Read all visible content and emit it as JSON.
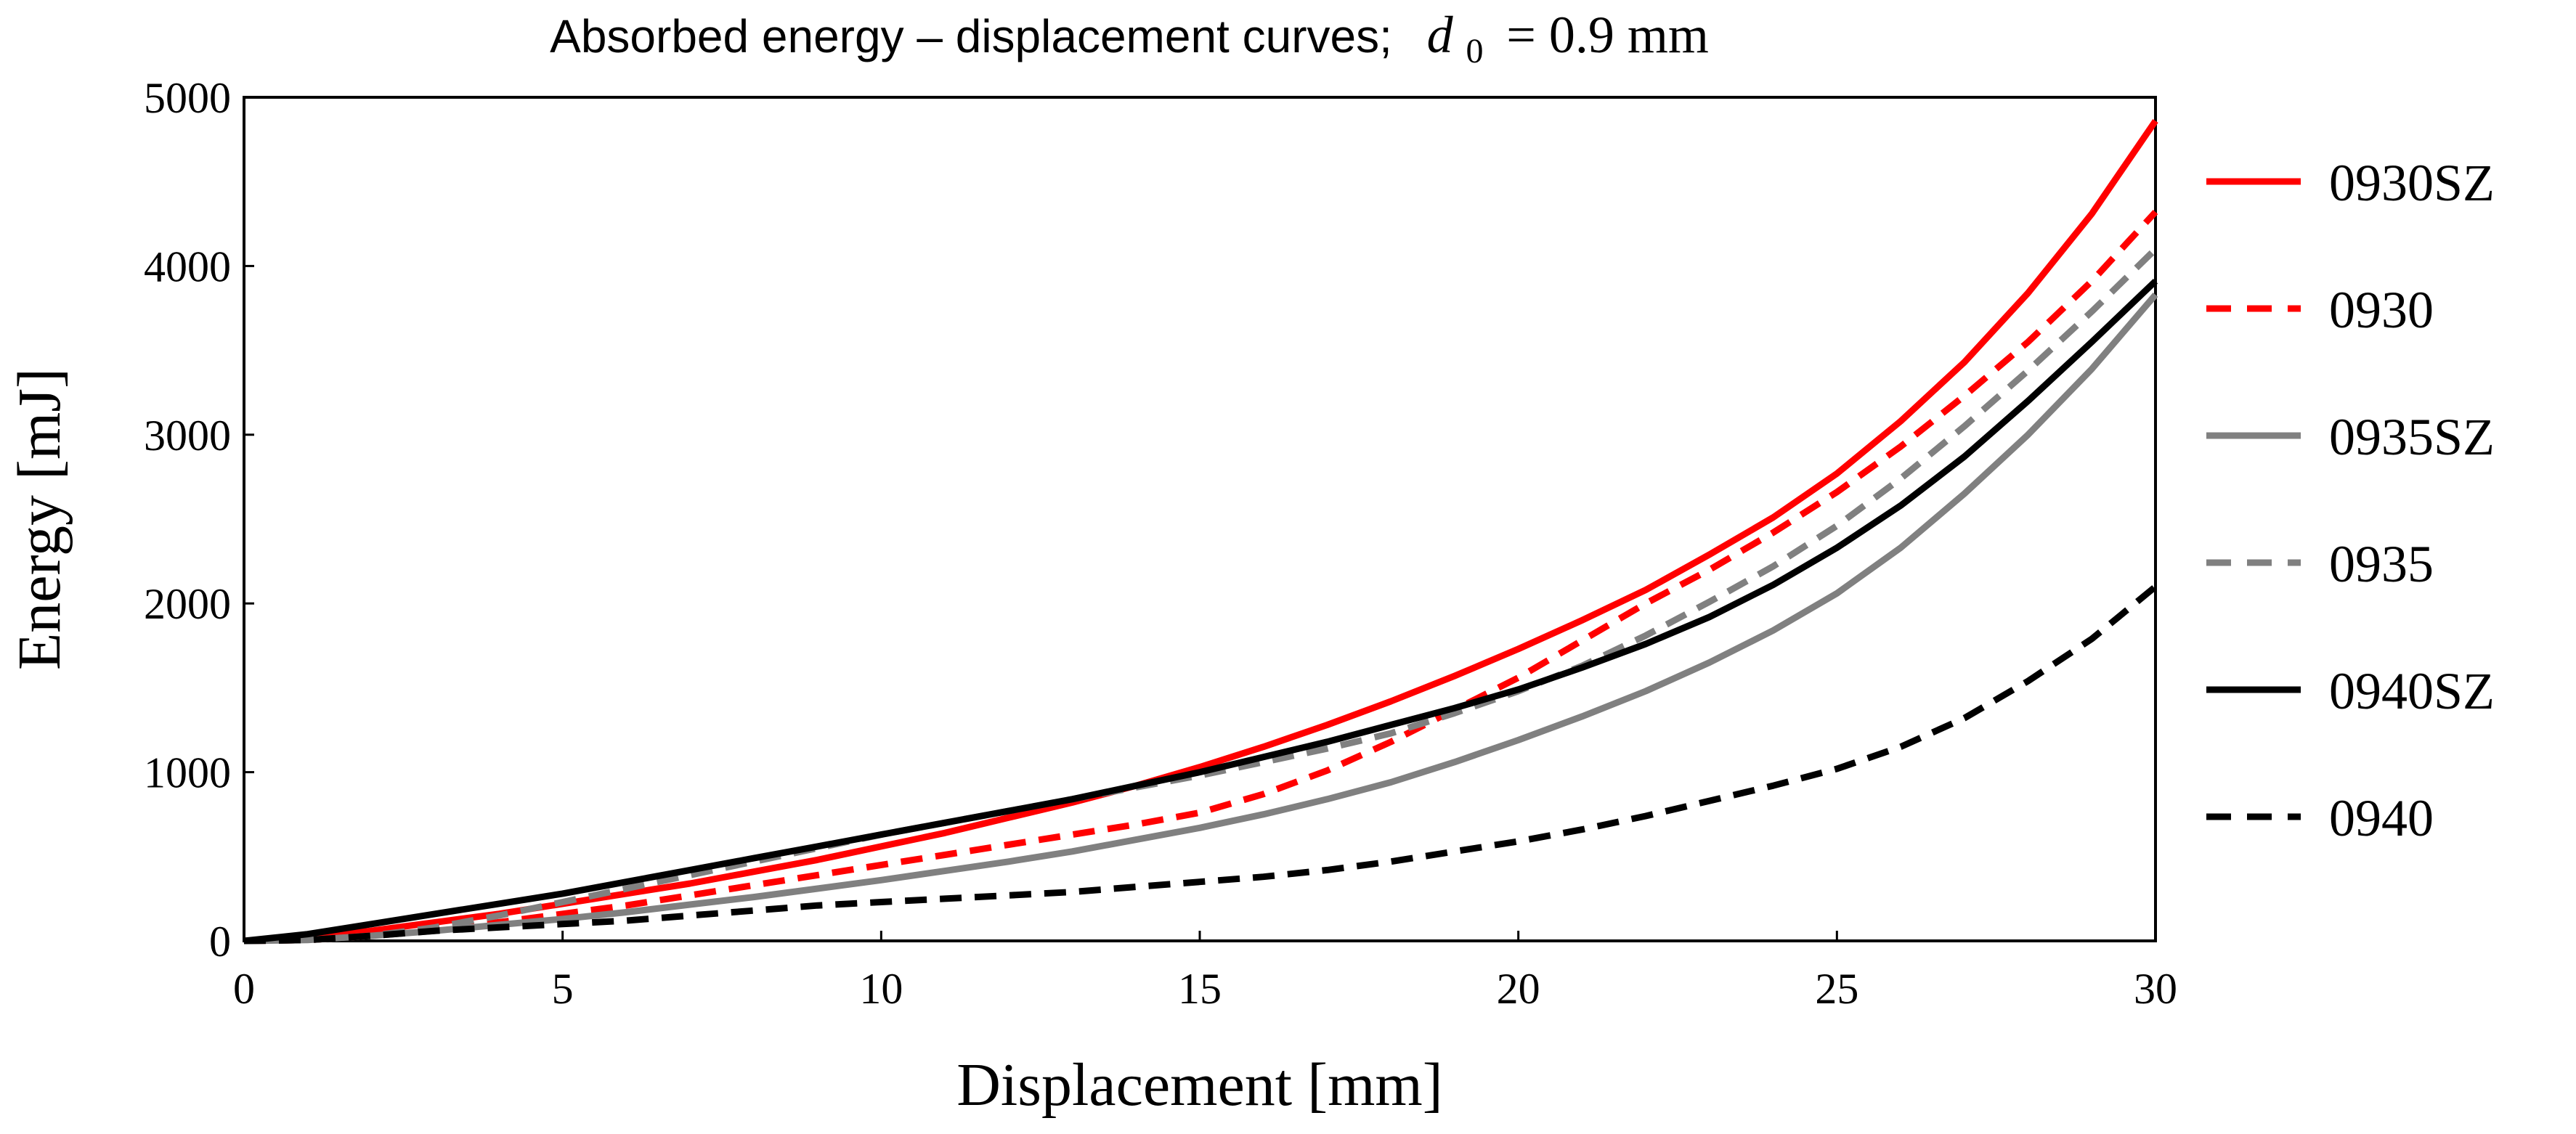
{
  "chart_data": {
    "type": "line",
    "title_text": "Absorbed energy – displacement curves;",
    "title_var": "d",
    "title_sub": "0",
    "title_value": "= 0.9 mm",
    "xlabel": "Displacement [mm]",
    "ylabel": "Energy [mJ]",
    "xlim": [
      0,
      30
    ],
    "ylim": [
      0,
      5000
    ],
    "xticks": [
      0,
      5,
      10,
      15,
      20,
      25,
      30
    ],
    "yticks": [
      0,
      1000,
      2000,
      3000,
      4000,
      5000
    ],
    "grid": false,
    "legend_position": "right",
    "series": [
      {
        "name": "0930SZ",
        "color": "#ff0000",
        "dash": "solid",
        "x": [
          0,
          1,
          2,
          3,
          4,
          5,
          6,
          7,
          8,
          9,
          10,
          11,
          12,
          13,
          14,
          15,
          16,
          17,
          18,
          19,
          20,
          21,
          22,
          23,
          24,
          25,
          26,
          27,
          28,
          29,
          30
        ],
        "y": [
          0,
          20,
          60,
          110,
          160,
          220,
          280,
          340,
          410,
          480,
          560,
          640,
          730,
          820,
          920,
          1030,
          1150,
          1280,
          1420,
          1570,
          1730,
          1900,
          2080,
          2290,
          2510,
          2770,
          3080,
          3430,
          3840,
          4310,
          4860
        ]
      },
      {
        "name": "0930",
        "color": "#ff0000",
        "dash": "dashed",
        "x": [
          0,
          1,
          2,
          3,
          4,
          5,
          6,
          7,
          8,
          9,
          10,
          11,
          12,
          13,
          14,
          15,
          16,
          17,
          18,
          19,
          20,
          21,
          22,
          23,
          24,
          25,
          26,
          27,
          28,
          29,
          30
        ],
        "y": [
          0,
          5,
          30,
          70,
          110,
          160,
          210,
          270,
          330,
          390,
          450,
          510,
          570,
          630,
          690,
          760,
          870,
          1010,
          1180,
          1370,
          1560,
          1780,
          2000,
          2200,
          2420,
          2660,
          2930,
          3230,
          3550,
          3910,
          4320
        ]
      },
      {
        "name": "0935SZ",
        "color": "#808080",
        "dash": "solid",
        "x": [
          0,
          1,
          2,
          3,
          4,
          5,
          6,
          7,
          8,
          9,
          10,
          11,
          12,
          13,
          14,
          15,
          16,
          17,
          18,
          19,
          20,
          21,
          22,
          23,
          24,
          25,
          26,
          27,
          28,
          29,
          30
        ],
        "y": [
          0,
          5,
          30,
          60,
          95,
          130,
          170,
          215,
          260,
          310,
          360,
          415,
          470,
          530,
          600,
          670,
          750,
          840,
          940,
          1060,
          1190,
          1330,
          1480,
          1650,
          1840,
          2060,
          2330,
          2650,
          3000,
          3390,
          3830
        ]
      },
      {
        "name": "0935",
        "color": "#808080",
        "dash": "dashed",
        "x": [
          0,
          1,
          2,
          3,
          4,
          5,
          6,
          7,
          8,
          9,
          10,
          11,
          12,
          13,
          14,
          15,
          16,
          17,
          18,
          19,
          20,
          21,
          22,
          23,
          24,
          25,
          26,
          27,
          28,
          29,
          30
        ],
        "y": [
          0,
          5,
          30,
          80,
          150,
          230,
          310,
          390,
          470,
          550,
          630,
          700,
          770,
          840,
          910,
          980,
          1060,
          1140,
          1230,
          1350,
          1480,
          1630,
          1810,
          2010,
          2220,
          2460,
          2740,
          3050,
          3380,
          3730,
          4100
        ]
      },
      {
        "name": "0940SZ",
        "color": "#000000",
        "dash": "solid",
        "x": [
          0,
          1,
          2,
          3,
          4,
          5,
          6,
          7,
          8,
          9,
          10,
          11,
          12,
          13,
          14,
          15,
          16,
          17,
          18,
          19,
          20,
          21,
          22,
          23,
          24,
          25,
          26,
          27,
          28,
          29,
          30
        ],
        "y": [
          0,
          40,
          100,
          160,
          220,
          280,
          350,
          420,
          490,
          560,
          630,
          700,
          770,
          840,
          920,
          1000,
          1090,
          1180,
          1280,
          1380,
          1490,
          1620,
          1760,
          1920,
          2110,
          2330,
          2580,
          2870,
          3200,
          3550,
          3910
        ]
      },
      {
        "name": "0940",
        "color": "#000000",
        "dash": "dashed",
        "x": [
          0,
          1,
          2,
          3,
          4,
          5,
          6,
          7,
          8,
          9,
          10,
          11,
          12,
          13,
          14,
          15,
          16,
          17,
          18,
          19,
          20,
          21,
          22,
          23,
          24,
          25,
          26,
          27,
          28,
          29,
          30
        ],
        "y": [
          0,
          5,
          30,
          60,
          80,
          100,
          120,
          150,
          180,
          210,
          230,
          250,
          270,
          290,
          320,
          350,
          380,
          420,
          470,
          530,
          590,
          660,
          740,
          830,
          920,
          1020,
          1150,
          1320,
          1540,
          1790,
          2100
        ]
      }
    ]
  }
}
